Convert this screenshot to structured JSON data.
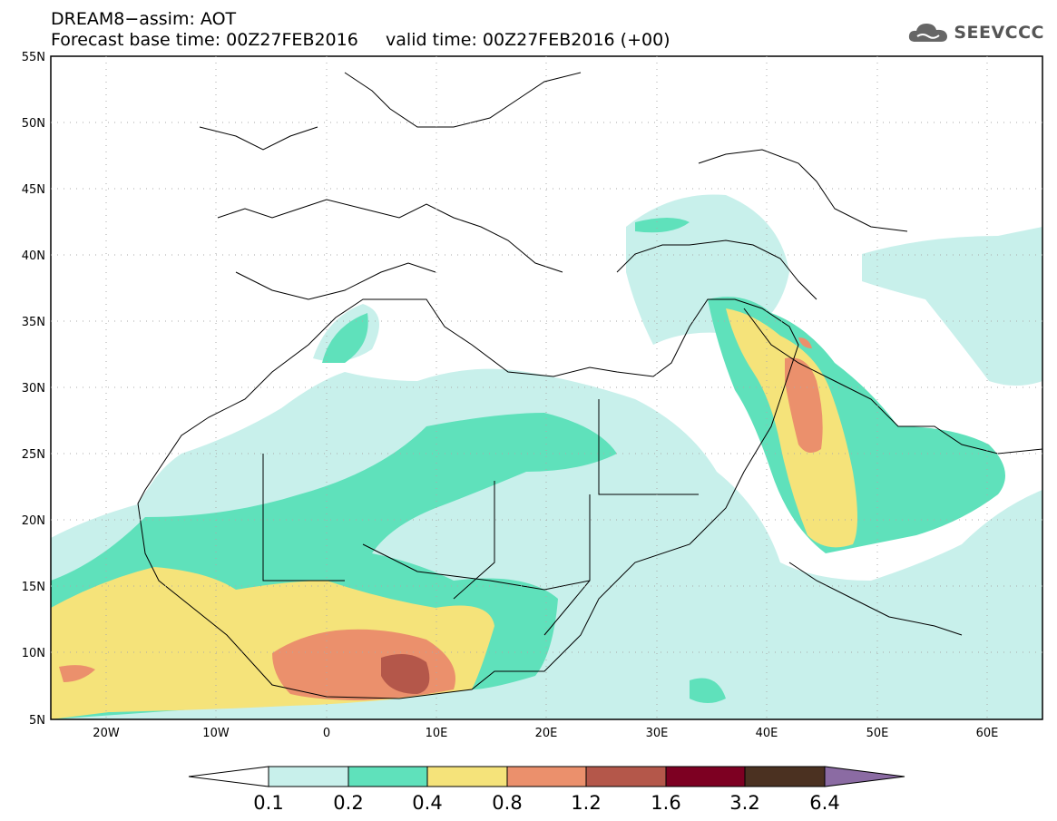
{
  "header": {
    "title_line_1": "DREAM8−assim: AOT",
    "title_line_2": "Forecast base time: 00Z27FEB2016     valid time: 00Z27FEB2016 (+00)",
    "brand": "SEEVCCC",
    "brand_icon": "cloud-icon"
  },
  "map": {
    "lat_ticks": [
      "55N",
      "50N",
      "45N",
      "40N",
      "35N",
      "30N",
      "25N",
      "20N",
      "15N",
      "10N",
      "5N"
    ],
    "lon_ticks": [
      "20W",
      "10W",
      "0",
      "10E",
      "20E",
      "30E",
      "40E",
      "50E",
      "60E"
    ],
    "colors": {
      "c01": "#c8f0eb",
      "c02": "#5fe1bb",
      "c04": "#f5e37a",
      "c08": "#eb906c",
      "c12": "#b4574a",
      "c16": "#7d0022",
      "c32": "#4b3121",
      "c64": "#8b6ba3"
    }
  },
  "colorbar": {
    "labels": [
      "0.1",
      "0.2",
      "0.4",
      "0.8",
      "1.2",
      "1.6",
      "3.2",
      "6.4"
    ]
  }
}
